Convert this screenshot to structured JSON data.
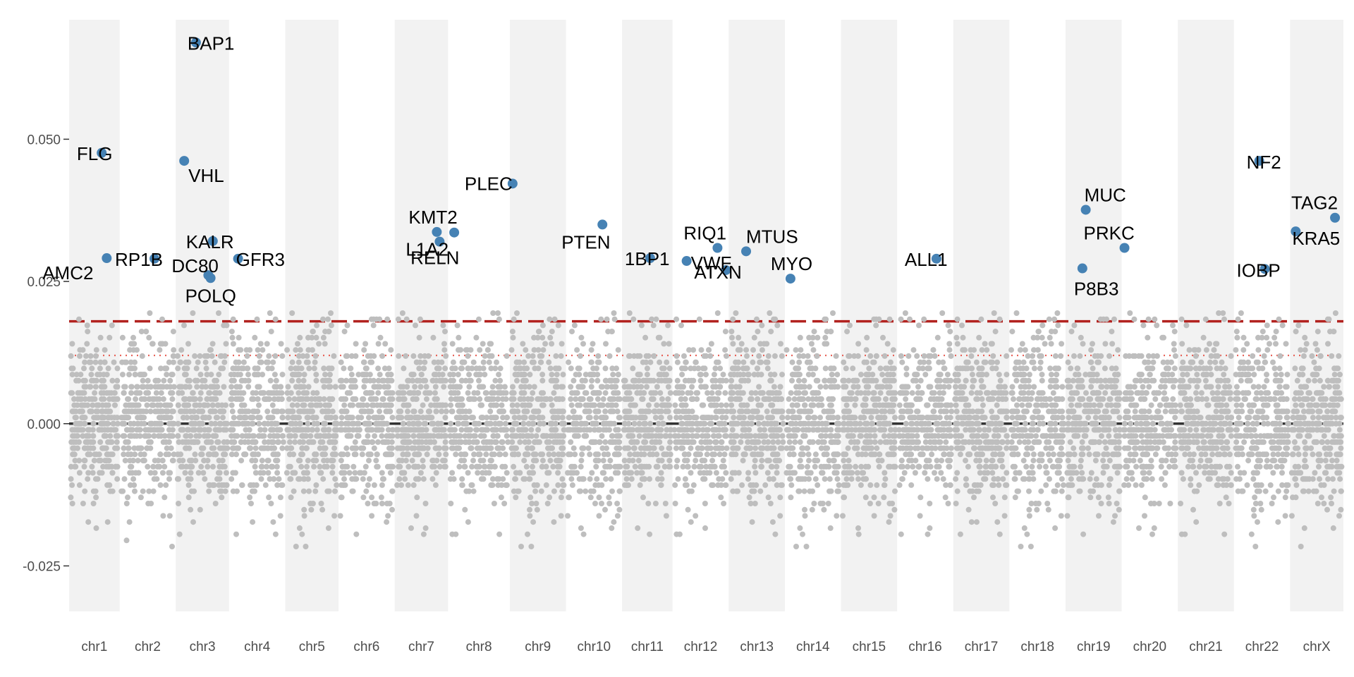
{
  "chart_data": {
    "type": "scatter",
    "title": "",
    "xlabel": "",
    "ylabel": "",
    "ylim": [
      -0.033,
      0.071
    ],
    "y_ticks": [
      {
        "value": 0.05,
        "label": "0.050"
      },
      {
        "value": 0.025,
        "label": "0.025"
      },
      {
        "value": 0.0,
        "label": "0.000"
      },
      {
        "value": -0.025,
        "label": "-0.025"
      }
    ],
    "categories": [
      "chr1",
      "chr2",
      "chr3",
      "chr4",
      "chr5",
      "chr6",
      "chr7",
      "chr8",
      "chr9",
      "chr10",
      "chr11",
      "chr12",
      "chr13",
      "chr14",
      "chr15",
      "chr16",
      "chr17",
      "chr18",
      "chr19",
      "chr20",
      "chr21",
      "chr22",
      "chrX"
    ],
    "chromosome_spans": [
      {
        "name": "chr1",
        "start": 0,
        "end": 9
      },
      {
        "name": "chr2",
        "start": 9,
        "end": 19
      },
      {
        "name": "chr3",
        "start": 19,
        "end": 28.5
      },
      {
        "name": "chr4",
        "start": 28.5,
        "end": 38.5
      },
      {
        "name": "chr5",
        "start": 38.5,
        "end": 48
      },
      {
        "name": "chr6",
        "start": 48,
        "end": 58
      },
      {
        "name": "chr7",
        "start": 58,
        "end": 67.5
      },
      {
        "name": "chr8",
        "start": 67.5,
        "end": 78.5
      },
      {
        "name": "chr9",
        "start": 78.5,
        "end": 88.5
      },
      {
        "name": "chr10",
        "start": 88.5,
        "end": 98.5
      },
      {
        "name": "chr11",
        "start": 98.5,
        "end": 107.5
      },
      {
        "name": "chr12",
        "start": 107.5,
        "end": 117.5
      },
      {
        "name": "chr13",
        "start": 117.5,
        "end": 127.5
      },
      {
        "name": "chr14",
        "start": 127.5,
        "end": 137.5
      },
      {
        "name": "chr15",
        "start": 137.5,
        "end": 147.5
      },
      {
        "name": "chr16",
        "start": 147.5,
        "end": 157.5
      },
      {
        "name": "chr17",
        "start": 157.5,
        "end": 167.5
      },
      {
        "name": "chr18",
        "start": 167.5,
        "end": 177.5
      },
      {
        "name": "chr19",
        "start": 177.5,
        "end": 187.5
      },
      {
        "name": "chr20",
        "start": 187.5,
        "end": 197.5
      },
      {
        "name": "chr21",
        "start": 197.5,
        "end": 207.5
      },
      {
        "name": "chr22",
        "start": 207.5,
        "end": 217.5
      },
      {
        "name": "chrX",
        "start": 217.5,
        "end": 227
      }
    ],
    "reference_lines": [
      {
        "value": 0.0,
        "style": "solid",
        "color": "#333333"
      },
      {
        "value": 0.018,
        "style": "dashed",
        "color": "#b2221f"
      },
      {
        "value": 0.012,
        "style": "dotted",
        "color": "#e8645a"
      }
    ],
    "background_points_color": "#bebebe",
    "highlight_color": "#4682b4",
    "highlighted_genes": [
      {
        "gene": "FLG",
        "x": 5.8,
        "y": 0.0476
      },
      {
        "gene": "AMC2",
        "x": 6.7,
        "y": 0.0291
      },
      {
        "gene": "RP1B",
        "x": 15.2,
        "y": 0.029
      },
      {
        "gene": "VHL",
        "x": 20.5,
        "y": 0.0462
      },
      {
        "gene": "BAP1",
        "x": 22.6,
        "y": 0.067
      },
      {
        "gene": "KALR",
        "x": 25.6,
        "y": 0.0321
      },
      {
        "gene": "DC80",
        "x": 24.8,
        "y": 0.0261
      },
      {
        "gene": "POLQ",
        "x": 25.2,
        "y": 0.0256
      },
      {
        "gene": "GFR3",
        "x": 30.1,
        "y": 0.029
      },
      {
        "gene": "KMT2",
        "x": 65.5,
        "y": 0.0337
      },
      {
        "gene": "L1A2",
        "x": 66.0,
        "y": 0.032
      },
      {
        "gene": "RELN",
        "x": 68.6,
        "y": 0.0336
      },
      {
        "gene": "PLEC",
        "x": 79.0,
        "y": 0.0422
      },
      {
        "gene": "PTEN",
        "x": 95.0,
        "y": 0.035
      },
      {
        "gene": "1BP1",
        "x": 103.5,
        "y": 0.0291
      },
      {
        "gene": "VWF",
        "x": 110.0,
        "y": 0.0286
      },
      {
        "gene": "RIQ1",
        "x": 115.5,
        "y": 0.0309
      },
      {
        "gene": "ATXN",
        "x": 117.0,
        "y": 0.027
      },
      {
        "gene": "MTUS",
        "x": 120.6,
        "y": 0.0303
      },
      {
        "gene": "MYO",
        "x": 128.5,
        "y": 0.0255
      },
      {
        "gene": "ALL1",
        "x": 154.5,
        "y": 0.029
      },
      {
        "gene": "P8B3",
        "x": 180.5,
        "y": 0.0273
      },
      {
        "gene": "MUC",
        "x": 181.1,
        "y": 0.0376
      },
      {
        "gene": "PRKC",
        "x": 188.0,
        "y": 0.0309
      },
      {
        "gene": "NF2",
        "x": 212.0,
        "y": 0.0462
      },
      {
        "gene": "IOBP",
        "x": 213.0,
        "y": 0.0272
      },
      {
        "gene": "KRA5",
        "x": 218.5,
        "y": 0.0338
      },
      {
        "gene": "TAG2",
        "x": 225.5,
        "y": 0.0362
      }
    ]
  }
}
